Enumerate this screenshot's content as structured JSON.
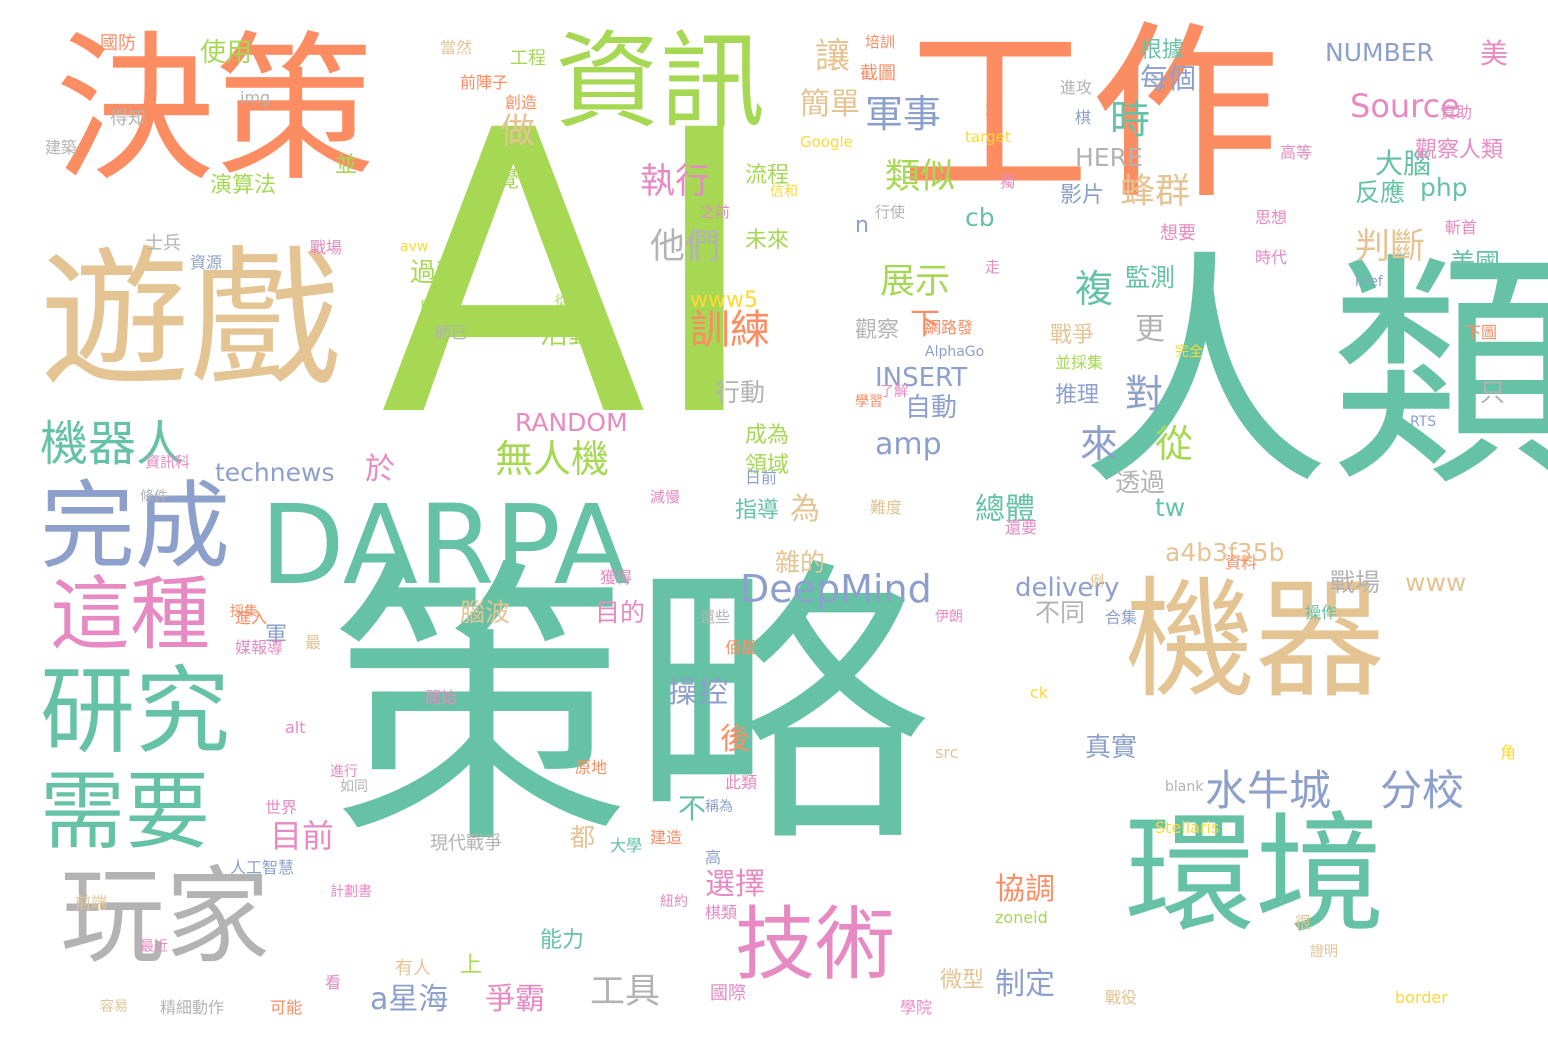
{
  "palette": {
    "green": "#a6d854",
    "teal": "#66c2a5",
    "orange": "#fc8d62",
    "tan": "#e5c494",
    "blue": "#8da0cb",
    "pink": "#e78ac3",
    "gray": "#b3b3b3",
    "yellow": "#ffd92f"
  },
  "words": [
    {
      "text": "AI",
      "color": "#a6d854"
    },
    {
      "text": "策略",
      "color": "#66c2a5"
    },
    {
      "text": "人類",
      "color": "#66c2a5"
    },
    {
      "text": "工作",
      "color": "#fc8d62"
    },
    {
      "text": "決策",
      "color": "#fc8d62"
    },
    {
      "text": "遊戲",
      "color": "#e5c494"
    },
    {
      "text": "資訊",
      "color": "#a6d854"
    },
    {
      "text": "機器",
      "color": "#e5c494"
    },
    {
      "text": "環境",
      "color": "#66c2a5"
    },
    {
      "text": "DARPA",
      "color": "#66c2a5"
    },
    {
      "text": "完成",
      "color": "#8da0cb"
    },
    {
      "text": "研究",
      "color": "#66c2a5"
    },
    {
      "text": "需要",
      "color": "#66c2a5"
    },
    {
      "text": "玩家",
      "color": "#b3b3b3"
    },
    {
      "text": "這種",
      "color": "#e78ac3"
    },
    {
      "text": "技術",
      "color": "#e78ac3"
    },
    {
      "text": "機器人",
      "color": "#66c2a5"
    },
    {
      "text": "DeepMind",
      "color": "#8da0cb"
    },
    {
      "text": "水牛城",
      "color": "#8da0cb"
    },
    {
      "text": "分校",
      "color": "#8da0cb"
    },
    {
      "text": "無人機",
      "color": "#a6d854"
    },
    {
      "text": "執行",
      "color": "#e78ac3"
    },
    {
      "text": "他們",
      "color": "#b3b3b3"
    },
    {
      "text": "訓練",
      "color": "#fc8d62"
    },
    {
      "text": "軍事",
      "color": "#8da0cb"
    },
    {
      "text": "類似",
      "color": "#a6d854"
    },
    {
      "text": "展示",
      "color": "#a6d854"
    },
    {
      "text": "蜂群",
      "color": "#e5c494"
    },
    {
      "text": "判斷",
      "color": "#e5c494"
    },
    {
      "text": "Source",
      "color": "#e78ac3"
    },
    {
      "text": "NUMBER",
      "color": "#8da0cb"
    },
    {
      "text": "每個",
      "color": "#8da0cb"
    },
    {
      "text": "根據",
      "color": "#66c2a5"
    },
    {
      "text": "美",
      "color": "#e78ac3"
    },
    {
      "text": "時",
      "color": "#66c2a5"
    },
    {
      "text": "讓",
      "color": "#e5c494"
    },
    {
      "text": "簡單",
      "color": "#e5c494"
    },
    {
      "text": "做",
      "color": "#e5c494"
    },
    {
      "text": "使用",
      "color": "#a6d854"
    },
    {
      "text": "演算法",
      "color": "#a6d854"
    },
    {
      "text": "並",
      "color": "#a6d854"
    },
    {
      "text": "流程",
      "color": "#a6d854"
    },
    {
      "text": "未來",
      "color": "#a6d854"
    },
    {
      "text": "直覺",
      "color": "#a6d854"
    },
    {
      "text": "過程",
      "color": "#a6d854"
    },
    {
      "text": "活動",
      "color": "#a6d854"
    },
    {
      "text": "www5",
      "color": "#ffd92f"
    },
    {
      "text": "複",
      "color": "#66c2a5"
    },
    {
      "text": "監測",
      "color": "#66c2a5"
    },
    {
      "text": "更",
      "color": "#b3b3b3"
    },
    {
      "text": "戰爭",
      "color": "#e5c494"
    },
    {
      "text": "推理",
      "color": "#8da0cb"
    },
    {
      "text": "對",
      "color": "#8da0cb"
    },
    {
      "text": "來",
      "color": "#8da0cb"
    },
    {
      "text": "從",
      "color": "#a6d854"
    },
    {
      "text": "INSERT",
      "color": "#8da0cb"
    },
    {
      "text": "自動",
      "color": "#8da0cb"
    },
    {
      "text": "amp",
      "color": "#8da0cb"
    },
    {
      "text": "下",
      "color": "#fc8d62"
    },
    {
      "text": "觀察",
      "color": "#b3b3b3"
    },
    {
      "text": "RANDOM",
      "color": "#e78ac3"
    },
    {
      "text": "行動",
      "color": "#b3b3b3"
    },
    {
      "text": "technews",
      "color": "#8da0cb"
    },
    {
      "text": "於",
      "color": "#e78ac3"
    },
    {
      "text": "為",
      "color": "#e5c494"
    },
    {
      "text": "總體",
      "color": "#66c2a5"
    },
    {
      "text": "透過",
      "color": "#b3b3b3"
    },
    {
      "text": "tw",
      "color": "#66c2a5"
    },
    {
      "text": "a4b3f35b",
      "color": "#e5c494"
    },
    {
      "text": "戰場",
      "color": "#b3b3b3"
    },
    {
      "text": "www",
      "color": "#e5c494"
    },
    {
      "text": "delivery",
      "color": "#8da0cb"
    },
    {
      "text": "不同",
      "color": "#b3b3b3"
    },
    {
      "text": "雜的",
      "color": "#e5c494"
    },
    {
      "text": "目的",
      "color": "#e78ac3"
    },
    {
      "text": "腦波",
      "color": "#e5c494"
    },
    {
      "text": "軍",
      "color": "#8da0cb"
    },
    {
      "text": "操控",
      "color": "#8da0cb"
    },
    {
      "text": "後",
      "color": "#fc8d62"
    },
    {
      "text": "不",
      "color": "#66c2a5"
    },
    {
      "text": "目前",
      "color": "#e78ac3"
    },
    {
      "text": "都",
      "color": "#e5c494"
    },
    {
      "text": "選擇",
      "color": "#e78ac3"
    },
    {
      "text": "上",
      "color": "#a6d854"
    },
    {
      "text": "a星海",
      "color": "#8da0cb"
    },
    {
      "text": "爭霸",
      "color": "#e78ac3"
    },
    {
      "text": "工具",
      "color": "#b3b3b3"
    },
    {
      "text": "微型",
      "color": "#e5c494"
    },
    {
      "text": "制定",
      "color": "#8da0cb"
    },
    {
      "text": "協調",
      "color": "#fc8d62"
    },
    {
      "text": "真實",
      "color": "#8da0cb"
    },
    {
      "text": "大腦",
      "color": "#66c2a5"
    },
    {
      "text": "觀察人類",
      "color": "#e78ac3"
    },
    {
      "text": "反應",
      "color": "#66c2a5"
    },
    {
      "text": "php",
      "color": "#66c2a5"
    },
    {
      "text": "美國",
      "color": "#66c2a5"
    },
    {
      "text": "HERE",
      "color": "#b3b3b3"
    },
    {
      "text": "影片",
      "color": "#8da0cb"
    },
    {
      "text": "cb",
      "color": "#66c2a5"
    },
    {
      "text": "n",
      "color": "#8da0cb"
    },
    {
      "text": "領域",
      "color": "#a6d854"
    },
    {
      "text": "成為",
      "color": "#a6d854"
    },
    {
      "text": "指導",
      "color": "#66c2a5"
    },
    {
      "text": "能力",
      "color": "#66c2a5"
    },
    {
      "text": "國防",
      "color": "#fc8d62"
    },
    {
      "text": "得知",
      "color": "#b3b3b3"
    },
    {
      "text": "建築",
      "color": "#b3b3b3"
    },
    {
      "text": "img",
      "color": "#b3b3b3"
    },
    {
      "text": "工程",
      "color": "#a6d854"
    },
    {
      "text": "前陣子",
      "color": "#fc8d62"
    },
    {
      "text": "創造",
      "color": "#fc8d62"
    },
    {
      "text": "截圖",
      "color": "#fc8d62"
    },
    {
      "text": "培訓",
      "color": "#fc8d62"
    },
    {
      "text": "這",
      "color": "#fc8d62"
    },
    {
      "text": "target",
      "color": "#ffd92f"
    },
    {
      "text": "Google",
      "color": "#ffd92f"
    },
    {
      "text": "進攻",
      "color": "#b3b3b3"
    },
    {
      "text": "棋",
      "color": "#8da0cb"
    },
    {
      "text": "資助",
      "color": "#e78ac3"
    },
    {
      "text": "高等",
      "color": "#e78ac3"
    },
    {
      "text": "思想",
      "color": "#e78ac3"
    },
    {
      "text": "想要",
      "color": "#e78ac3"
    },
    {
      "text": "時代",
      "color": "#e78ac3"
    },
    {
      "text": "斬首",
      "color": "#e78ac3"
    },
    {
      "text": "href",
      "color": "#8da0cb"
    },
    {
      "text": "下圖",
      "color": "#fc8d62"
    },
    {
      "text": "只",
      "color": "#b3b3b3"
    },
    {
      "text": "RTS",
      "color": "#8da0cb"
    },
    {
      "text": "士兵",
      "color": "#b3b3b3"
    },
    {
      "text": "資源",
      "color": "#8da0cb"
    },
    {
      "text": "戰場",
      "color": "#e78ac3"
    },
    {
      "text": "avw",
      "color": "#ffd92f"
    },
    {
      "text": "即將",
      "color": "#a6d854"
    },
    {
      "text": "從外",
      "color": "#a6d854"
    },
    {
      "text": "師已",
      "color": "#b3b3b3"
    },
    {
      "text": "網路發",
      "color": "#fc8d62"
    },
    {
      "text": "AlphaGo",
      "color": "#8da0cb"
    },
    {
      "text": "並採集",
      "color": "#a6d854"
    },
    {
      "text": "完全",
      "color": "#ffd92f"
    },
    {
      "text": "學習",
      "color": "#fc8d62"
    },
    {
      "text": "日前",
      "color": "#8da0cb"
    },
    {
      "text": "難度",
      "color": "#e5c494"
    },
    {
      "text": "還要",
      "color": "#e78ac3"
    },
    {
      "text": "資料",
      "color": "#fc8d62"
    },
    {
      "text": "操作",
      "color": "#66c2a5"
    },
    {
      "text": "合集",
      "color": "#8da0cb"
    },
    {
      "text": "伊朗",
      "color": "#e78ac3"
    },
    {
      "text": "獲得",
      "color": "#e78ac3"
    },
    {
      "text": "還些",
      "color": "#b3b3b3"
    },
    {
      "text": "佰星",
      "color": "#fc8d62"
    },
    {
      "text": "開始",
      "color": "#e78ac3"
    },
    {
      "text": "alt",
      "color": "#e78ac3"
    },
    {
      "text": "進行",
      "color": "#e78ac3"
    },
    {
      "text": "如同",
      "color": "#b3b3b3"
    },
    {
      "text": "世界",
      "color": "#e78ac3"
    },
    {
      "text": "此類",
      "color": "#e78ac3"
    },
    {
      "text": "稱為",
      "color": "#8da0cb"
    },
    {
      "text": "src",
      "color": "#e5c494"
    },
    {
      "text": "ck",
      "color": "#ffd92f"
    },
    {
      "text": "blank",
      "color": "#b3b3b3"
    },
    {
      "text": "Stellaris",
      "color": "#ffd92f"
    },
    {
      "text": "原地",
      "color": "#fc8d62"
    },
    {
      "text": "建造",
      "color": "#fc8d62"
    },
    {
      "text": "高",
      "color": "#8da0cb"
    },
    {
      "text": "大學",
      "color": "#66c2a5"
    },
    {
      "text": "現代戰爭",
      "color": "#b3b3b3"
    },
    {
      "text": "人工智慧",
      "color": "#8da0cb"
    },
    {
      "text": "前端",
      "color": "#e5c494"
    },
    {
      "text": "計劃書",
      "color": "#e78ac3"
    },
    {
      "text": "zoneid",
      "color": "#a6d854"
    },
    {
      "text": "棋類",
      "color": "#e78ac3"
    },
    {
      "text": "紐約",
      "color": "#e78ac3"
    },
    {
      "text": "很",
      "color": "#e5c494"
    },
    {
      "text": "證明",
      "color": "#e5c494"
    },
    {
      "text": "有人",
      "color": "#e5c494"
    },
    {
      "text": "看",
      "color": "#e78ac3"
    },
    {
      "text": "國際",
      "color": "#e78ac3"
    },
    {
      "text": "學院",
      "color": "#e78ac3"
    },
    {
      "text": "戰役",
      "color": "#e5c494"
    },
    {
      "text": "border",
      "color": "#ffd92f"
    },
    {
      "text": "可能",
      "color": "#fc8d62"
    },
    {
      "text": "精細動作",
      "color": "#b3b3b3"
    },
    {
      "text": "容易",
      "color": "#e5c494"
    },
    {
      "text": "最近",
      "color": "#e78ac3"
    },
    {
      "text": "進入",
      "color": "#fc8d62"
    },
    {
      "text": "最",
      "color": "#e5c494"
    },
    {
      "text": "採集",
      "color": "#fc8d62"
    },
    {
      "text": "媒報導",
      "color": "#e78ac3"
    },
    {
      "text": "資訊科",
      "color": "#e78ac3"
    },
    {
      "text": "條件",
      "color": "#b3b3b3"
    },
    {
      "text": "減慢",
      "color": "#e78ac3"
    },
    {
      "text": "了解",
      "color": "#e78ac3"
    },
    {
      "text": "之前",
      "color": "#e78ac3"
    },
    {
      "text": "行使",
      "color": "#b3b3b3"
    },
    {
      "text": "走",
      "color": "#e78ac3"
    },
    {
      "text": "獨",
      "color": "#e78ac3"
    },
    {
      "text": "信和",
      "color": "#ffd92f"
    },
    {
      "text": "當然",
      "color": "#e5c494"
    },
    {
      "text": "例",
      "color": "#e5c494"
    },
    {
      "text": "角",
      "color": "#ffd92f"
    }
  ]
}
